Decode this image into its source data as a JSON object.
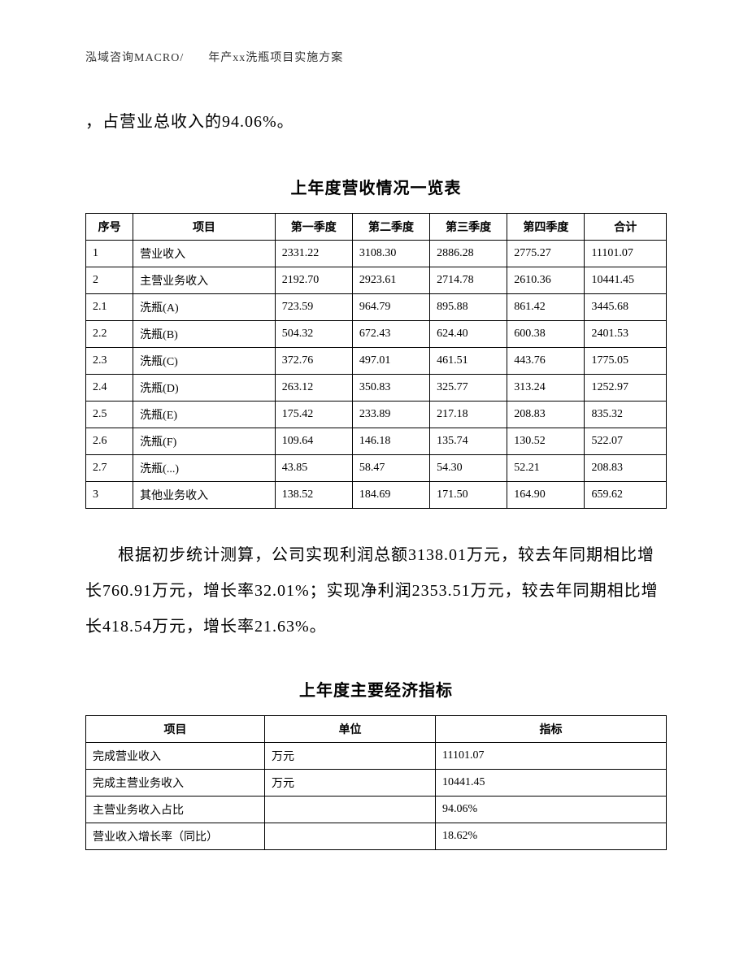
{
  "header": {
    "text": "泓域咨询MACRO/　　年产xx洗瓶项目实施方案"
  },
  "intro": {
    "text": "，占营业总收入的94.06%。"
  },
  "table1": {
    "title": "上年度营收情况一览表",
    "columns": [
      "序号",
      "项目",
      "第一季度",
      "第二季度",
      "第三季度",
      "第四季度",
      "合计"
    ],
    "rows": [
      [
        "1",
        "营业收入",
        "2331.22",
        "3108.30",
        "2886.28",
        "2775.27",
        "11101.07"
      ],
      [
        "2",
        "主营业务收入",
        "2192.70",
        "2923.61",
        "2714.78",
        "2610.36",
        "10441.45"
      ],
      [
        "2.1",
        "洗瓶(A)",
        "723.59",
        "964.79",
        "895.88",
        "861.42",
        "3445.68"
      ],
      [
        "2.2",
        "洗瓶(B)",
        "504.32",
        "672.43",
        "624.40",
        "600.38",
        "2401.53"
      ],
      [
        "2.3",
        "洗瓶(C)",
        "372.76",
        "497.01",
        "461.51",
        "443.76",
        "1775.05"
      ],
      [
        "2.4",
        "洗瓶(D)",
        "263.12",
        "350.83",
        "325.77",
        "313.24",
        "1252.97"
      ],
      [
        "2.5",
        "洗瓶(E)",
        "175.42",
        "233.89",
        "217.18",
        "208.83",
        "835.32"
      ],
      [
        "2.6",
        "洗瓶(F)",
        "109.64",
        "146.18",
        "135.74",
        "130.52",
        "522.07"
      ],
      [
        "2.7",
        "洗瓶(...)",
        "43.85",
        "58.47",
        "54.30",
        "52.21",
        "208.83"
      ],
      [
        "3",
        "其他业务收入",
        "138.52",
        "184.69",
        "171.50",
        "164.90",
        "659.62"
      ]
    ]
  },
  "body": {
    "text": "根据初步统计测算，公司实现利润总额3138.01万元，较去年同期相比增长760.91万元，增长率32.01%；实现净利润2353.51万元，较去年同期相比增长418.54万元，增长率21.63%。"
  },
  "table2": {
    "title": "上年度主要经济指标",
    "columns": [
      "项目",
      "单位",
      "指标"
    ],
    "rows": [
      [
        "完成营业收入",
        "万元",
        "11101.07"
      ],
      [
        "完成主营业务收入",
        "万元",
        "10441.45"
      ],
      [
        "主营业务收入占比",
        "",
        "94.06%"
      ],
      [
        "营业收入增长率（同比）",
        "",
        "18.62%"
      ]
    ]
  }
}
